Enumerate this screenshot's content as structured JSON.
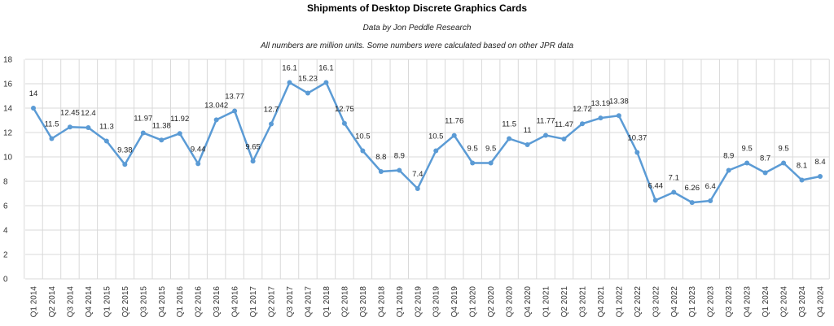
{
  "chart_data": {
    "type": "line",
    "title": "Shipments of Desktop Discrete Graphics Cards",
    "subtitle": "Data by Jon Peddle Research",
    "note": "All numbers are million units. Some numbers were calculated based on other JPR data",
    "xlabel": "",
    "ylabel": "",
    "ylim": [
      0,
      18
    ],
    "yticks": [
      0,
      2,
      4,
      6,
      8,
      10,
      12,
      14,
      16,
      18
    ],
    "grid": true,
    "line_color": "#5b9bd5",
    "grid_color": "#d9d9d9",
    "categories": [
      "Q1 2014",
      "Q2 2014",
      "Q3 2014",
      "Q4 2014",
      "Q1 2015",
      "Q2 2015",
      "Q3 2015",
      "Q4 2015",
      "Q1 2016",
      "Q2 2016",
      "Q3 2016",
      "Q4 2016",
      "Q1 2017",
      "Q2 2017",
      "Q3 2017",
      "Q4 2017",
      "Q1 2018",
      "Q2 2018",
      "Q3 2018",
      "Q4 2018",
      "Q1 2019",
      "Q2 2019",
      "Q3 2019",
      "Q4 2019",
      "Q1 2020",
      "Q2 2020",
      "Q3 2020",
      "Q4 2020",
      "Q1 2021",
      "Q2 2021",
      "Q3 2021",
      "Q4 2021",
      "Q1 2022",
      "Q2 2022",
      "Q3 2022",
      "Q4 2022",
      "Q1 2023",
      "Q2 2023",
      "Q3 2023",
      "Q4 2023",
      "Q1 2024",
      "Q2 2024",
      "Q3 2024",
      "Q4 2024"
    ],
    "values": [
      14,
      11.5,
      12.45,
      12.4,
      11.3,
      9.38,
      11.97,
      11.38,
      11.92,
      9.44,
      13.042,
      13.77,
      9.65,
      12.7,
      16.1,
      15.23,
      16.1,
      12.75,
      10.5,
      8.8,
      8.9,
      7.4,
      10.5,
      11.76,
      9.5,
      9.5,
      11.5,
      11,
      11.77,
      11.47,
      12.72,
      13.19,
      13.38,
      10.37,
      6.44,
      7.1,
      6.26,
      6.4,
      8.9,
      9.5,
      8.7,
      9.5,
      8.1,
      8.4
    ],
    "data_labels": [
      "14",
      "11.5",
      "12.45",
      "12.4",
      "11.3",
      "9.38",
      "11.97",
      "11.38",
      "11.92",
      "9.44",
      "13.042",
      "13.77",
      "9.65",
      "12.7",
      "16.1",
      "15.23",
      "16.1",
      "12.75",
      "10.5",
      "8.8",
      "8.9",
      "7.4",
      "10.5",
      "11.76",
      "9.5",
      "9.5",
      "11.5",
      "11",
      "11.77",
      "11.47",
      "12.72",
      "13.19",
      "13.38",
      "10.37",
      "6.44",
      "7.1",
      "6.26",
      "6.4",
      "8.9",
      "9.5",
      "8.7",
      "9.5",
      "8.1",
      "8.4"
    ]
  }
}
